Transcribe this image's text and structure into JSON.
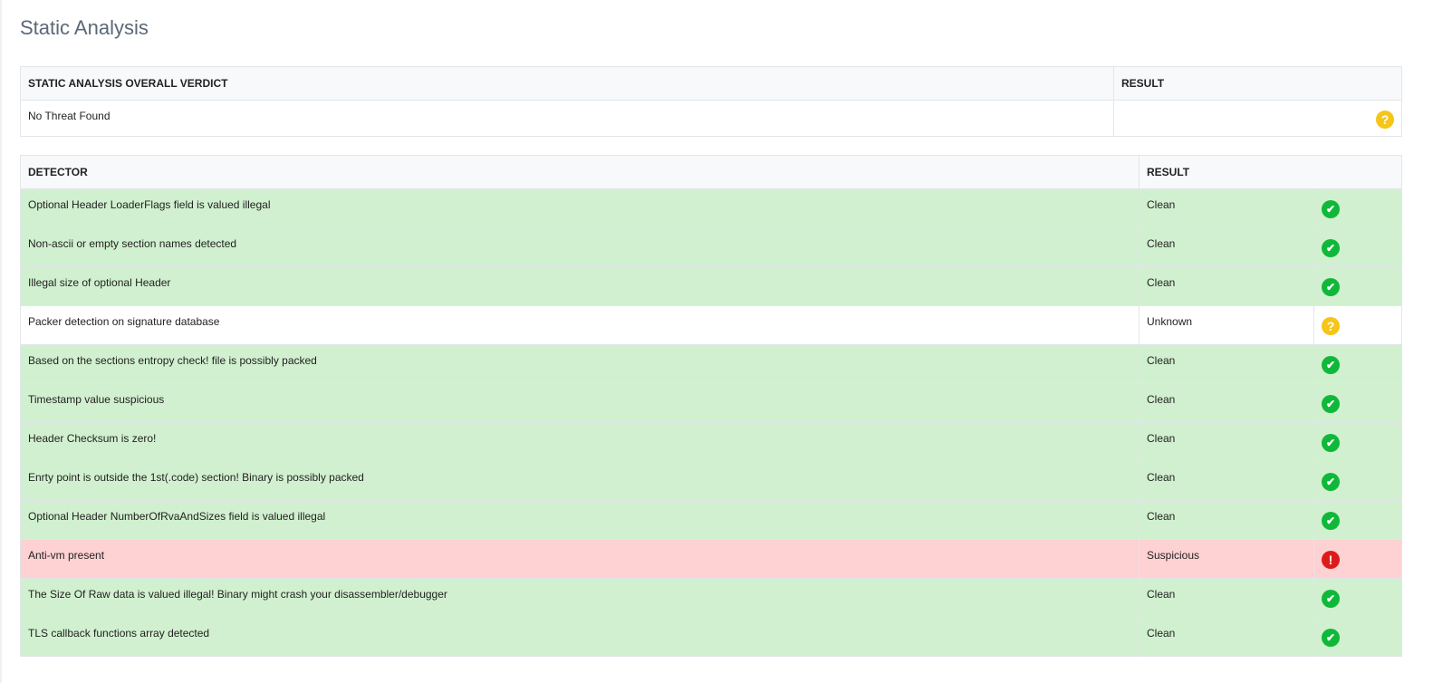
{
  "page_title": "Static Analysis",
  "colors": {
    "clean_row": "#d1f0cf",
    "suspicious_row": "#fed1d3",
    "clean_icon": "#10b83a",
    "unknown_icon": "#f5c518",
    "suspicious_icon": "#dc1c1c"
  },
  "verdict_table": {
    "headers": [
      "STATIC ANALYSIS OVERALL VERDICT",
      "RESULT"
    ],
    "verdict": "No Threat Found",
    "result_icon": "question-circle-icon"
  },
  "detector_table": {
    "headers": [
      "DETECTOR",
      "RESULT"
    ],
    "rows": [
      {
        "detector": "Optional Header LoaderFlags field is valued illegal",
        "result": "Clean",
        "status": "clean"
      },
      {
        "detector": "Non-ascii or empty section names detected",
        "result": "Clean",
        "status": "clean"
      },
      {
        "detector": "Illegal size of optional Header",
        "result": "Clean",
        "status": "clean"
      },
      {
        "detector": "Packer detection on signature database",
        "result": "Unknown",
        "status": "unknown"
      },
      {
        "detector": "Based on the sections entropy check! file is possibly packed",
        "result": "Clean",
        "status": "clean"
      },
      {
        "detector": "Timestamp value suspicious",
        "result": "Clean",
        "status": "clean"
      },
      {
        "detector": "Header Checksum is zero!",
        "result": "Clean",
        "status": "clean"
      },
      {
        "detector": "Enrty point is outside the 1st(.code) section! Binary is possibly packed",
        "result": "Clean",
        "status": "clean"
      },
      {
        "detector": "Optional Header NumberOfRvaAndSizes field is valued illegal",
        "result": "Clean",
        "status": "clean"
      },
      {
        "detector": "Anti-vm present",
        "result": "Suspicious",
        "status": "suspicious"
      },
      {
        "detector": "The Size Of Raw data is valued illegal! Binary might crash your disassembler/debugger",
        "result": "Clean",
        "status": "clean"
      },
      {
        "detector": "TLS callback functions array detected",
        "result": "Clean",
        "status": "clean"
      }
    ]
  }
}
